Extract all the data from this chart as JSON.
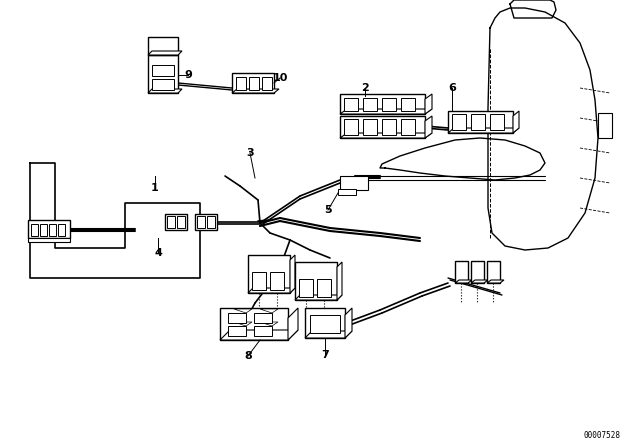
{
  "bg_color": "#ffffff",
  "line_color": "#000000",
  "diagram_id": "00007528",
  "figsize": [
    6.4,
    4.48
  ],
  "dpi": 100
}
